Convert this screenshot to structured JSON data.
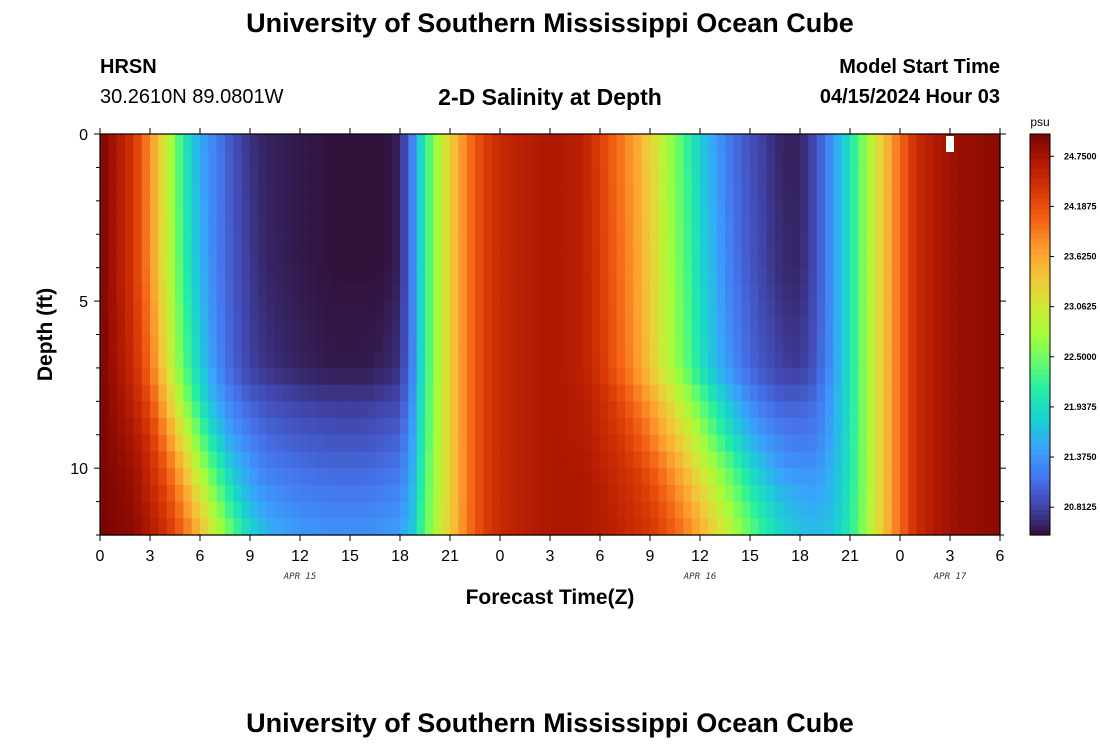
{
  "header": {
    "title": "University of Southern Mississippi Ocean Cube",
    "station": "HRSN",
    "coords": "30.2610N  89.0801W",
    "plot_title": "2-D Salinity at Depth",
    "model_start_label": "Model Start Time",
    "model_start_value": "04/15/2024 Hour 03"
  },
  "footer": {
    "title": "University of Southern Mississippi Ocean Cube"
  },
  "chart_data": {
    "type": "heatmap",
    "title": "2-D Salinity at Depth",
    "xlabel": "Forecast Time(Z)",
    "ylabel": "Depth (ft)",
    "x_ticks": [
      "0",
      "3",
      "6",
      "9",
      "12",
      "15",
      "18",
      "21",
      "0",
      "3",
      "6",
      "9",
      "12",
      "15",
      "18",
      "21",
      "0",
      "3",
      "6"
    ],
    "x_range_hours": [
      0,
      54
    ],
    "date_labels": [
      {
        "hour": 12,
        "text": "APR 15"
      },
      {
        "hour": 36,
        "text": "APR 16"
      },
      {
        "hour": 51,
        "text": "APR 17"
      }
    ],
    "y_ticks": [
      "0",
      "5",
      "10"
    ],
    "y_range_ft": [
      0,
      12
    ],
    "colorbar": {
      "unit": "psu",
      "min": 20.5,
      "max": 25.0,
      "tick_labels": [
        "24.7500",
        "24.1875",
        "23.6250",
        "23.0625",
        "22.5000",
        "21.9375",
        "21.3750",
        "20.8125"
      ],
      "colors": [
        "#30123b",
        "#4145ab",
        "#4675ed",
        "#39a2fc",
        "#1bcfd4",
        "#24eca6",
        "#61fc6c",
        "#a4fc3b",
        "#d1e834",
        "#f3c63a",
        "#fe9b2d",
        "#f36315",
        "#d93806",
        "#b11901",
        "#7a0403"
      ]
    },
    "salinity_profile": {
      "depth_ft": [
        0,
        4,
        7,
        8,
        9,
        10,
        11,
        12
      ],
      "time_hours": [
        0,
        2,
        3,
        4,
        5,
        6,
        7,
        8,
        9,
        10,
        12,
        14,
        16,
        17,
        18,
        18.7,
        19.2,
        20,
        21,
        22,
        23,
        24,
        25,
        27,
        29,
        30,
        31,
        32,
        33,
        34,
        35,
        36,
        37,
        38,
        39,
        40,
        41,
        42,
        43,
        44,
        45,
        46,
        47,
        48,
        49,
        51,
        54
      ],
      "values_psu": [
        [
          25.0,
          24.4,
          23.8,
          23.0,
          22.1,
          21.5,
          21.2,
          20.9,
          20.7,
          20.6,
          20.55,
          20.5,
          20.5,
          20.5,
          20.6,
          21.2,
          21.8,
          22.6,
          23.3,
          23.9,
          24.3,
          24.5,
          24.6,
          24.7,
          24.6,
          24.3,
          24.0,
          23.7,
          23.3,
          22.8,
          22.3,
          21.8,
          21.4,
          21.1,
          20.9,
          20.75,
          20.6,
          20.6,
          20.9,
          21.4,
          22.0,
          22.7,
          23.4,
          24.0,
          24.5,
          24.8,
          24.9
        ],
        [
          25.0,
          24.4,
          23.8,
          23.0,
          22.2,
          21.6,
          21.2,
          20.95,
          20.75,
          20.62,
          20.55,
          20.5,
          20.5,
          20.5,
          20.6,
          21.2,
          21.8,
          22.6,
          23.3,
          23.9,
          24.3,
          24.5,
          24.6,
          24.7,
          24.6,
          24.35,
          24.05,
          23.75,
          23.35,
          22.85,
          22.4,
          21.9,
          21.5,
          21.15,
          20.95,
          20.78,
          20.65,
          20.62,
          20.9,
          21.4,
          22.0,
          22.7,
          23.4,
          24.0,
          24.5,
          24.8,
          24.9
        ],
        [
          25.0,
          24.5,
          24.0,
          23.2,
          22.4,
          21.8,
          21.3,
          21.0,
          20.8,
          20.7,
          20.6,
          20.55,
          20.55,
          20.6,
          20.7,
          21.2,
          21.8,
          22.6,
          23.3,
          23.9,
          24.3,
          24.5,
          24.6,
          24.7,
          24.6,
          24.4,
          24.1,
          23.8,
          23.4,
          22.9,
          22.5,
          22.0,
          21.6,
          21.3,
          21.05,
          20.9,
          20.78,
          20.75,
          20.95,
          21.4,
          22.0,
          22.7,
          23.4,
          24.0,
          24.5,
          24.8,
          24.9
        ],
        [
          25.0,
          24.6,
          24.2,
          23.5,
          22.7,
          22.0,
          21.5,
          21.2,
          21.0,
          20.9,
          20.8,
          20.75,
          20.75,
          20.8,
          20.85,
          21.3,
          21.9,
          22.6,
          23.3,
          23.9,
          24.3,
          24.5,
          24.6,
          24.7,
          24.65,
          24.5,
          24.3,
          24.0,
          23.7,
          23.3,
          22.9,
          22.4,
          22.0,
          21.6,
          21.3,
          21.1,
          21.0,
          21.0,
          21.1,
          21.5,
          22.0,
          22.7,
          23.4,
          24.0,
          24.5,
          24.8,
          24.9
        ],
        [
          25.0,
          24.7,
          24.4,
          23.8,
          23.1,
          22.4,
          21.8,
          21.4,
          21.2,
          21.05,
          20.95,
          20.9,
          20.9,
          20.95,
          21.0,
          21.4,
          21.95,
          22.6,
          23.3,
          23.9,
          24.3,
          24.5,
          24.6,
          24.7,
          24.65,
          24.55,
          24.4,
          24.2,
          23.9,
          23.55,
          23.2,
          22.75,
          22.3,
          21.9,
          21.55,
          21.35,
          21.2,
          21.15,
          21.2,
          21.5,
          22.0,
          22.7,
          23.4,
          24.0,
          24.5,
          24.8,
          24.9
        ],
        [
          25.0,
          24.8,
          24.5,
          24.1,
          23.5,
          22.8,
          22.2,
          21.7,
          21.4,
          21.2,
          21.1,
          21.05,
          21.05,
          21.1,
          21.15,
          21.5,
          22.0,
          22.7,
          23.3,
          23.9,
          24.3,
          24.5,
          24.6,
          24.7,
          24.7,
          24.6,
          24.5,
          24.35,
          24.15,
          23.85,
          23.5,
          23.1,
          22.7,
          22.3,
          21.9,
          21.6,
          21.4,
          21.35,
          21.35,
          21.6,
          22.0,
          22.7,
          23.4,
          24.0,
          24.5,
          24.8,
          24.9
        ],
        [
          25.0,
          24.85,
          24.6,
          24.3,
          23.8,
          23.2,
          22.6,
          22.0,
          21.6,
          21.4,
          21.25,
          21.2,
          21.2,
          21.25,
          21.3,
          21.6,
          22.1,
          22.7,
          23.3,
          23.9,
          24.3,
          24.5,
          24.6,
          24.7,
          24.7,
          24.65,
          24.55,
          24.45,
          24.3,
          24.05,
          23.75,
          23.4,
          23.0,
          22.6,
          22.2,
          21.9,
          21.65,
          21.55,
          21.5,
          21.65,
          22.05,
          22.7,
          23.4,
          24.0,
          24.5,
          24.8,
          24.9
        ],
        [
          25.0,
          24.9,
          24.7,
          24.45,
          24.05,
          23.55,
          22.95,
          22.4,
          21.9,
          21.6,
          21.4,
          21.35,
          21.35,
          21.4,
          21.45,
          21.7,
          22.15,
          22.75,
          23.35,
          23.9,
          24.3,
          24.5,
          24.6,
          24.7,
          24.7,
          24.65,
          24.6,
          24.5,
          24.4,
          24.2,
          23.95,
          23.6,
          23.25,
          22.85,
          22.45,
          22.1,
          21.85,
          21.7,
          21.65,
          21.75,
          22.1,
          22.75,
          23.4,
          24.0,
          24.5,
          24.8,
          24.9
        ]
      ]
    },
    "marker": {
      "hour": 51,
      "depth_ft": 0.3,
      "color": "#ffffff"
    }
  }
}
